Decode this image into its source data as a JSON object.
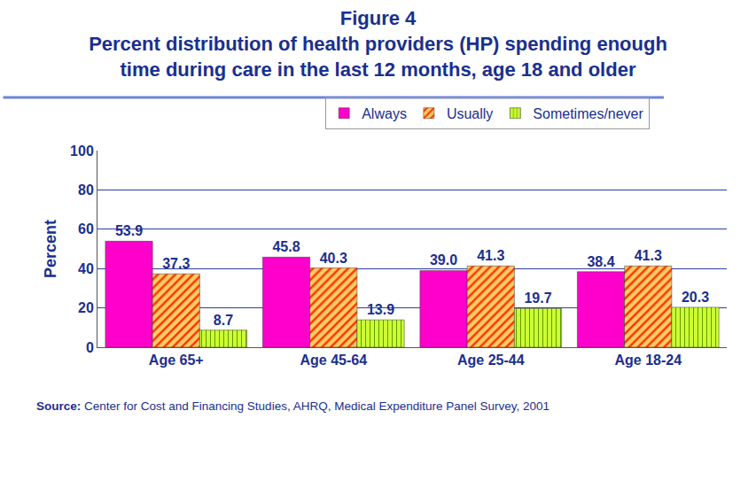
{
  "chart_data": {
    "type": "bar",
    "title": "Figure 4",
    "subtitle": "Percent distribution of health providers (HP) spending enough time during care in the last 12 months, age 18 and older",
    "y_label": "Percent",
    "source": "Source: Center for Cost and Financing Studies, AHRQ, Medical Expenditure Panel Survey, 2001",
    "categories": [
      "Age 65+",
      "Age 45-64",
      "Age 25-44",
      "Age 18-24"
    ],
    "series": [
      {
        "name": "Always",
        "color": "#ff00cc",
        "values": [
          53.9,
          45.8,
          39.0,
          38.4
        ],
        "value_labels": [
          "53.9",
          "45.8",
          "39.0",
          "38.4"
        ]
      },
      {
        "name": "Usually",
        "color": "#ffcc66",
        "values": [
          37.3,
          40.3,
          41.3,
          41.3
        ]
      },
      {
        "name": "Sometimes/never",
        "color": "#ccff33",
        "values": [
          8.7,
          13.9,
          19.7,
          20.3
        ]
      }
    ],
    "ylim": [
      0,
      100
    ],
    "yticks": [
      0,
      20,
      40,
      60,
      80,
      100
    ],
    "grid": true,
    "legend": "top",
    "data_labels": true
  }
}
